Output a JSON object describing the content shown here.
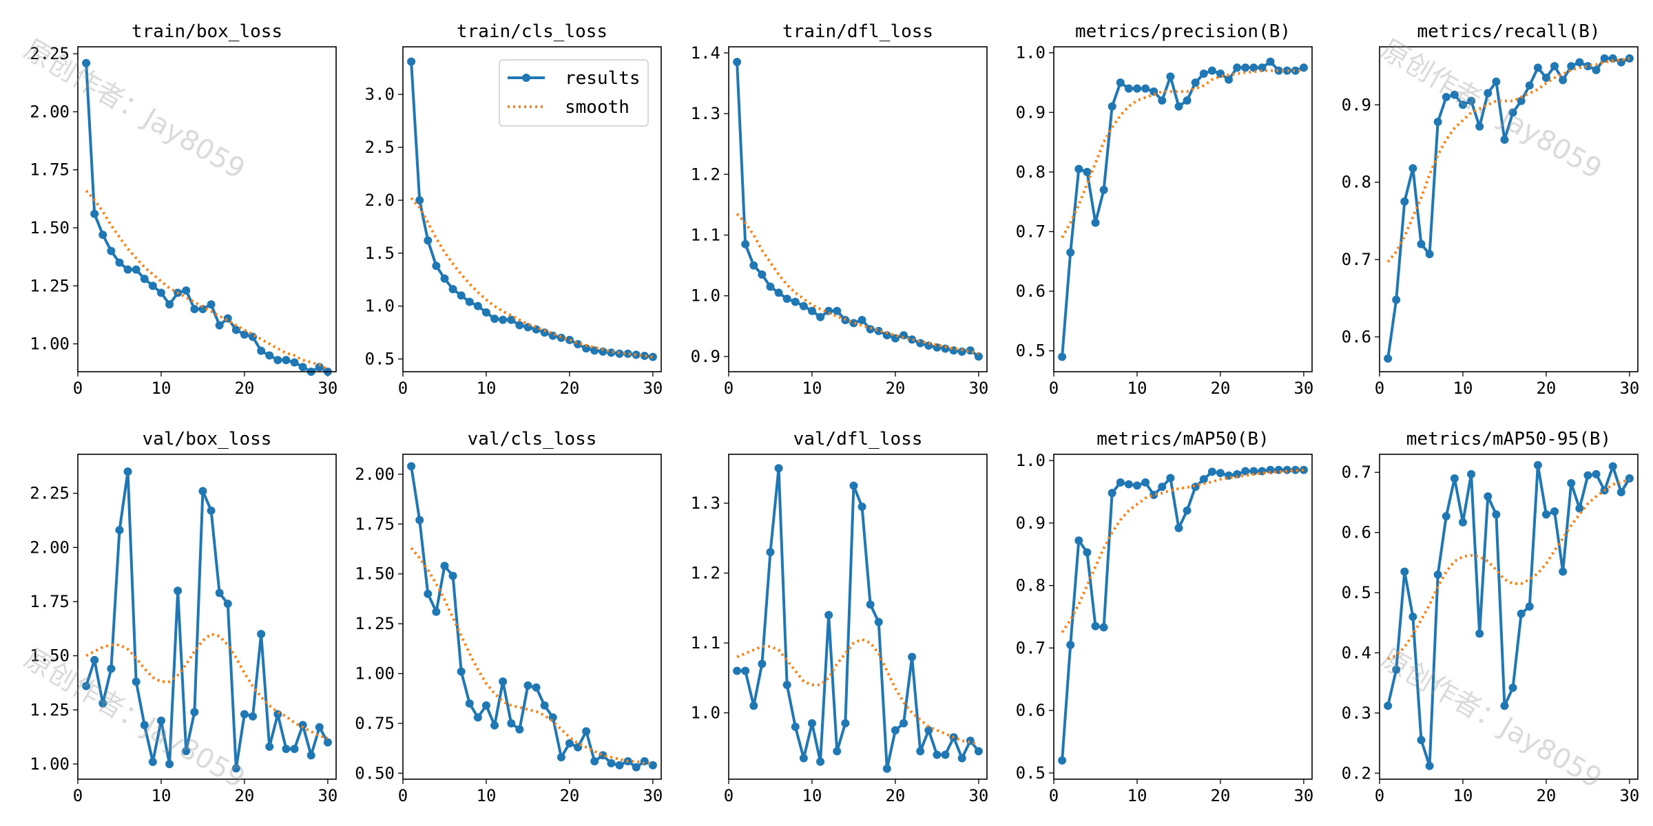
{
  "colors": {
    "results": "#1f77b4",
    "smooth": "#ff7f0e",
    "axis": "#000000",
    "background": "#ffffff"
  },
  "legend": {
    "results_label": "results",
    "smooth_label": "smooth",
    "placement": "top-right of train/cls_loss"
  },
  "watermark": {
    "text": "原创作者：Jay8059"
  },
  "chart_data": [
    {
      "type": "line",
      "title": "train/box_loss",
      "xlim": [
        0,
        31
      ],
      "ylim": [
        0.88,
        2.28
      ],
      "xticks": [
        0,
        10,
        20,
        30
      ],
      "yticks": [
        1.0,
        1.25,
        1.5,
        1.75,
        2.0,
        2.25
      ],
      "ytick_labels": [
        "1.00",
        "1.25",
        "1.50",
        "1.75",
        "2.00",
        "2.25"
      ],
      "series": [
        {
          "name": "results",
          "values": [
            2.21,
            1.56,
            1.47,
            1.4,
            1.35,
            1.32,
            1.32,
            1.28,
            1.25,
            1.22,
            1.17,
            1.22,
            1.23,
            1.15,
            1.15,
            1.17,
            1.08,
            1.11,
            1.06,
            1.04,
            1.03,
            0.97,
            0.95,
            0.93,
            0.93,
            0.92,
            0.9,
            0.88,
            0.9,
            0.88
          ]
        },
        {
          "name": "smooth",
          "values": [
            1.66,
            1.62,
            1.57,
            1.51,
            1.46,
            1.41,
            1.37,
            1.33,
            1.3,
            1.27,
            1.24,
            1.22,
            1.2,
            1.18,
            1.16,
            1.14,
            1.12,
            1.1,
            1.08,
            1.06,
            1.04,
            1.02,
            1.0,
            0.98,
            0.96,
            0.95,
            0.93,
            0.92,
            0.91,
            0.89
          ]
        }
      ]
    },
    {
      "type": "line",
      "title": "train/cls_loss",
      "xlim": [
        0,
        31
      ],
      "ylim": [
        0.38,
        3.45
      ],
      "xticks": [
        0,
        10,
        20,
        30
      ],
      "yticks": [
        0.5,
        1.0,
        1.5,
        2.0,
        2.5,
        3.0
      ],
      "ytick_labels": [
        "0.5",
        "1.0",
        "1.5",
        "2.0",
        "2.5",
        "3.0"
      ],
      "series": [
        {
          "name": "results",
          "values": [
            3.31,
            2.0,
            1.62,
            1.38,
            1.26,
            1.16,
            1.1,
            1.04,
            1.0,
            0.94,
            0.88,
            0.87,
            0.87,
            0.82,
            0.8,
            0.78,
            0.75,
            0.72,
            0.7,
            0.68,
            0.64,
            0.6,
            0.58,
            0.57,
            0.56,
            0.55,
            0.55,
            0.54,
            0.53,
            0.52
          ]
        },
        {
          "name": "smooth",
          "values": [
            2.02,
            1.93,
            1.79,
            1.64,
            1.51,
            1.4,
            1.3,
            1.21,
            1.13,
            1.06,
            1.0,
            0.95,
            0.91,
            0.87,
            0.83,
            0.8,
            0.77,
            0.74,
            0.71,
            0.68,
            0.65,
            0.63,
            0.61,
            0.59,
            0.57,
            0.56,
            0.55,
            0.54,
            0.53,
            0.52
          ]
        }
      ]
    },
    {
      "type": "line",
      "title": "train/dfl_loss",
      "xlim": [
        0,
        31
      ],
      "ylim": [
        0.875,
        1.41
      ],
      "xticks": [
        0,
        10,
        20,
        30
      ],
      "yticks": [
        0.9,
        1.0,
        1.1,
        1.2,
        1.3,
        1.4
      ],
      "ytick_labels": [
        "0.9",
        "1.0",
        "1.1",
        "1.2",
        "1.3",
        "1.4"
      ],
      "series": [
        {
          "name": "results",
          "values": [
            1.385,
            1.085,
            1.05,
            1.035,
            1.015,
            1.005,
            0.995,
            0.99,
            0.983,
            0.975,
            0.965,
            0.975,
            0.975,
            0.96,
            0.955,
            0.96,
            0.945,
            0.942,
            0.935,
            0.93,
            0.935,
            0.928,
            0.922,
            0.918,
            0.915,
            0.913,
            0.91,
            0.908,
            0.91,
            0.9
          ]
        },
        {
          "name": "smooth",
          "values": [
            1.135,
            1.12,
            1.1,
            1.075,
            1.055,
            1.035,
            1.018,
            1.005,
            0.995,
            0.985,
            0.978,
            0.972,
            0.966,
            0.961,
            0.956,
            0.951,
            0.947,
            0.943,
            0.939,
            0.935,
            0.931,
            0.928,
            0.925,
            0.922,
            0.919,
            0.916,
            0.913,
            0.911,
            0.908,
            0.905
          ]
        }
      ]
    },
    {
      "type": "line",
      "title": "metrics/precision(B)",
      "xlim": [
        0,
        31
      ],
      "ylim": [
        0.465,
        1.01
      ],
      "xticks": [
        0,
        10,
        20,
        30
      ],
      "yticks": [
        0.5,
        0.6,
        0.7,
        0.8,
        0.9,
        1.0
      ],
      "ytick_labels": [
        "0.5",
        "0.6",
        "0.7",
        "0.8",
        "0.9",
        "1.0"
      ],
      "series": [
        {
          "name": "results",
          "values": [
            0.49,
            0.665,
            0.805,
            0.8,
            0.715,
            0.77,
            0.91,
            0.95,
            0.94,
            0.94,
            0.94,
            0.935,
            0.92,
            0.96,
            0.91,
            0.92,
            0.95,
            0.965,
            0.97,
            0.965,
            0.955,
            0.975,
            0.975,
            0.975,
            0.975,
            0.985,
            0.97,
            0.97,
            0.97,
            0.975
          ]
        },
        {
          "name": "smooth",
          "values": [
            0.69,
            0.715,
            0.745,
            0.78,
            0.815,
            0.85,
            0.875,
            0.895,
            0.91,
            0.92,
            0.925,
            0.93,
            0.935,
            0.935,
            0.935,
            0.935,
            0.94,
            0.945,
            0.955,
            0.96,
            0.963,
            0.965,
            0.967,
            0.968,
            0.97,
            0.97,
            0.97,
            0.97,
            0.97,
            0.97
          ]
        }
      ]
    },
    {
      "type": "line",
      "title": "metrics/recall(B)",
      "xlim": [
        0,
        31
      ],
      "ylim": [
        0.555,
        0.975
      ],
      "xticks": [
        0,
        10,
        20,
        30
      ],
      "yticks": [
        0.6,
        0.7,
        0.8,
        0.9
      ],
      "ytick_labels": [
        "0.6",
        "0.7",
        "0.8",
        "0.9"
      ],
      "series": [
        {
          "name": "results",
          "values": [
            0.572,
            0.648,
            0.775,
            0.818,
            0.72,
            0.707,
            0.878,
            0.91,
            0.913,
            0.9,
            0.905,
            0.872,
            0.915,
            0.93,
            0.855,
            0.89,
            0.905,
            0.925,
            0.948,
            0.935,
            0.95,
            0.932,
            0.95,
            0.955,
            0.95,
            0.945,
            0.96,
            0.96,
            0.955,
            0.96
          ]
        },
        {
          "name": "smooth",
          "values": [
            0.697,
            0.71,
            0.73,
            0.755,
            0.78,
            0.81,
            0.835,
            0.855,
            0.87,
            0.88,
            0.89,
            0.895,
            0.9,
            0.905,
            0.905,
            0.905,
            0.91,
            0.915,
            0.92,
            0.928,
            0.935,
            0.94,
            0.945,
            0.948,
            0.95,
            0.952,
            0.955,
            0.957,
            0.958,
            0.96
          ]
        }
      ]
    },
    {
      "type": "line",
      "title": "val/box_loss",
      "xlim": [
        0,
        31
      ],
      "ylim": [
        0.93,
        2.43
      ],
      "xticks": [
        0,
        10,
        20,
        30
      ],
      "yticks": [
        1.0,
        1.25,
        1.5,
        1.75,
        2.0,
        2.25
      ],
      "ytick_labels": [
        "1.00",
        "1.25",
        "1.50",
        "1.75",
        "2.00",
        "2.25"
      ],
      "series": [
        {
          "name": "results",
          "values": [
            1.36,
            1.48,
            1.28,
            1.44,
            2.08,
            2.35,
            1.38,
            1.18,
            1.01,
            1.2,
            1.0,
            1.8,
            1.06,
            1.24,
            2.26,
            2.17,
            1.79,
            1.74,
            0.98,
            1.23,
            1.22,
            1.6,
            1.08,
            1.23,
            1.07,
            1.07,
            1.18,
            1.04,
            1.17,
            1.1
          ]
        },
        {
          "name": "smooth",
          "values": [
            1.5,
            1.52,
            1.54,
            1.55,
            1.55,
            1.53,
            1.49,
            1.44,
            1.4,
            1.38,
            1.38,
            1.41,
            1.46,
            1.52,
            1.57,
            1.6,
            1.59,
            1.55,
            1.49,
            1.42,
            1.36,
            1.31,
            1.27,
            1.24,
            1.22,
            1.19,
            1.17,
            1.15,
            1.13,
            1.12
          ]
        }
      ]
    },
    {
      "type": "line",
      "title": "val/cls_loss",
      "xlim": [
        0,
        31
      ],
      "ylim": [
        0.47,
        2.1
      ],
      "xticks": [
        0,
        10,
        20,
        30
      ],
      "yticks": [
        0.5,
        0.75,
        1.0,
        1.25,
        1.5,
        1.75,
        2.0
      ],
      "ytick_labels": [
        "0.50",
        "0.75",
        "1.00",
        "1.25",
        "1.50",
        "1.75",
        "2.00"
      ],
      "series": [
        {
          "name": "results",
          "values": [
            2.04,
            1.77,
            1.4,
            1.31,
            1.54,
            1.49,
            1.01,
            0.85,
            0.78,
            0.84,
            0.74,
            0.96,
            0.75,
            0.72,
            0.94,
            0.93,
            0.84,
            0.78,
            0.58,
            0.65,
            0.63,
            0.71,
            0.56,
            0.59,
            0.55,
            0.54,
            0.56,
            0.53,
            0.56,
            0.54
          ]
        },
        {
          "name": "smooth",
          "values": [
            1.63,
            1.58,
            1.52,
            1.45,
            1.37,
            1.28,
            1.19,
            1.1,
            1.02,
            0.95,
            0.9,
            0.86,
            0.84,
            0.83,
            0.82,
            0.81,
            0.79,
            0.76,
            0.72,
            0.68,
            0.65,
            0.63,
            0.61,
            0.59,
            0.58,
            0.57,
            0.56,
            0.56,
            0.55,
            0.55
          ]
        }
      ]
    },
    {
      "type": "line",
      "title": "val/dfl_loss",
      "xlim": [
        0,
        31
      ],
      "ylim": [
        0.905,
        1.37
      ],
      "xticks": [
        0,
        10,
        20,
        30
      ],
      "yticks": [
        1.0,
        1.1,
        1.2,
        1.3
      ],
      "ytick_labels": [
        "1.0",
        "1.1",
        "1.2",
        "1.3"
      ],
      "series": [
        {
          "name": "results",
          "values": [
            1.06,
            1.06,
            1.01,
            1.07,
            1.23,
            1.35,
            1.04,
            0.98,
            0.935,
            0.985,
            0.93,
            1.14,
            0.945,
            0.985,
            1.325,
            1.295,
            1.155,
            1.13,
            0.92,
            0.975,
            0.985,
            1.08,
            0.945,
            0.975,
            0.94,
            0.94,
            0.965,
            0.935,
            0.96,
            0.945
          ]
        },
        {
          "name": "smooth",
          "values": [
            1.08,
            1.085,
            1.09,
            1.095,
            1.095,
            1.09,
            1.075,
            1.06,
            1.045,
            1.04,
            1.04,
            1.05,
            1.07,
            1.085,
            1.1,
            1.105,
            1.1,
            1.085,
            1.06,
            1.035,
            1.015,
            1.0,
            0.99,
            0.98,
            0.975,
            0.97,
            0.965,
            0.96,
            0.958,
            0.955
          ]
        }
      ]
    },
    {
      "type": "line",
      "title": "metrics/mAP50(B)",
      "xlim": [
        0,
        31
      ],
      "ylim": [
        0.49,
        1.01
      ],
      "xticks": [
        0,
        10,
        20,
        30
      ],
      "yticks": [
        0.5,
        0.6,
        0.7,
        0.8,
        0.9,
        1.0
      ],
      "ytick_labels": [
        "0.5",
        "0.6",
        "0.7",
        "0.8",
        "0.9",
        "1.0"
      ],
      "series": [
        {
          "name": "results",
          "values": [
            0.52,
            0.705,
            0.872,
            0.853,
            0.735,
            0.733,
            0.948,
            0.965,
            0.962,
            0.96,
            0.965,
            0.945,
            0.958,
            0.972,
            0.892,
            0.92,
            0.958,
            0.97,
            0.982,
            0.98,
            0.976,
            0.978,
            0.983,
            0.983,
            0.983,
            0.985,
            0.985,
            0.985,
            0.985,
            0.985
          ]
        },
        {
          "name": "smooth",
          "values": [
            0.725,
            0.745,
            0.77,
            0.8,
            0.83,
            0.86,
            0.885,
            0.905,
            0.92,
            0.93,
            0.94,
            0.945,
            0.948,
            0.952,
            0.955,
            0.957,
            0.96,
            0.963,
            0.966,
            0.97,
            0.972,
            0.974,
            0.976,
            0.978,
            0.98,
            0.981,
            0.982,
            0.983,
            0.984,
            0.985
          ]
        }
      ]
    },
    {
      "type": "line",
      "title": "metrics/mAP50-95(B)",
      "xlim": [
        0,
        31
      ],
      "ylim": [
        0.19,
        0.73
      ],
      "xticks": [
        0,
        10,
        20,
        30
      ],
      "yticks": [
        0.2,
        0.3,
        0.4,
        0.5,
        0.6,
        0.7
      ],
      "ytick_labels": [
        "0.2",
        "0.3",
        "0.4",
        "0.5",
        "0.6",
        "0.7"
      ],
      "series": [
        {
          "name": "results",
          "values": [
            0.312,
            0.372,
            0.535,
            0.46,
            0.255,
            0.212,
            0.53,
            0.627,
            0.69,
            0.617,
            0.697,
            0.432,
            0.66,
            0.63,
            0.312,
            0.342,
            0.465,
            0.477,
            0.712,
            0.63,
            0.635,
            0.535,
            0.682,
            0.64,
            0.695,
            0.697,
            0.67,
            0.71,
            0.667,
            0.69
          ]
        },
        {
          "name": "smooth",
          "values": [
            0.39,
            0.395,
            0.41,
            0.43,
            0.455,
            0.48,
            0.51,
            0.535,
            0.552,
            0.56,
            0.562,
            0.56,
            0.552,
            0.538,
            0.522,
            0.515,
            0.515,
            0.522,
            0.532,
            0.548,
            0.57,
            0.59,
            0.612,
            0.63,
            0.648,
            0.66,
            0.67,
            0.68,
            0.684,
            0.688
          ]
        }
      ]
    }
  ]
}
